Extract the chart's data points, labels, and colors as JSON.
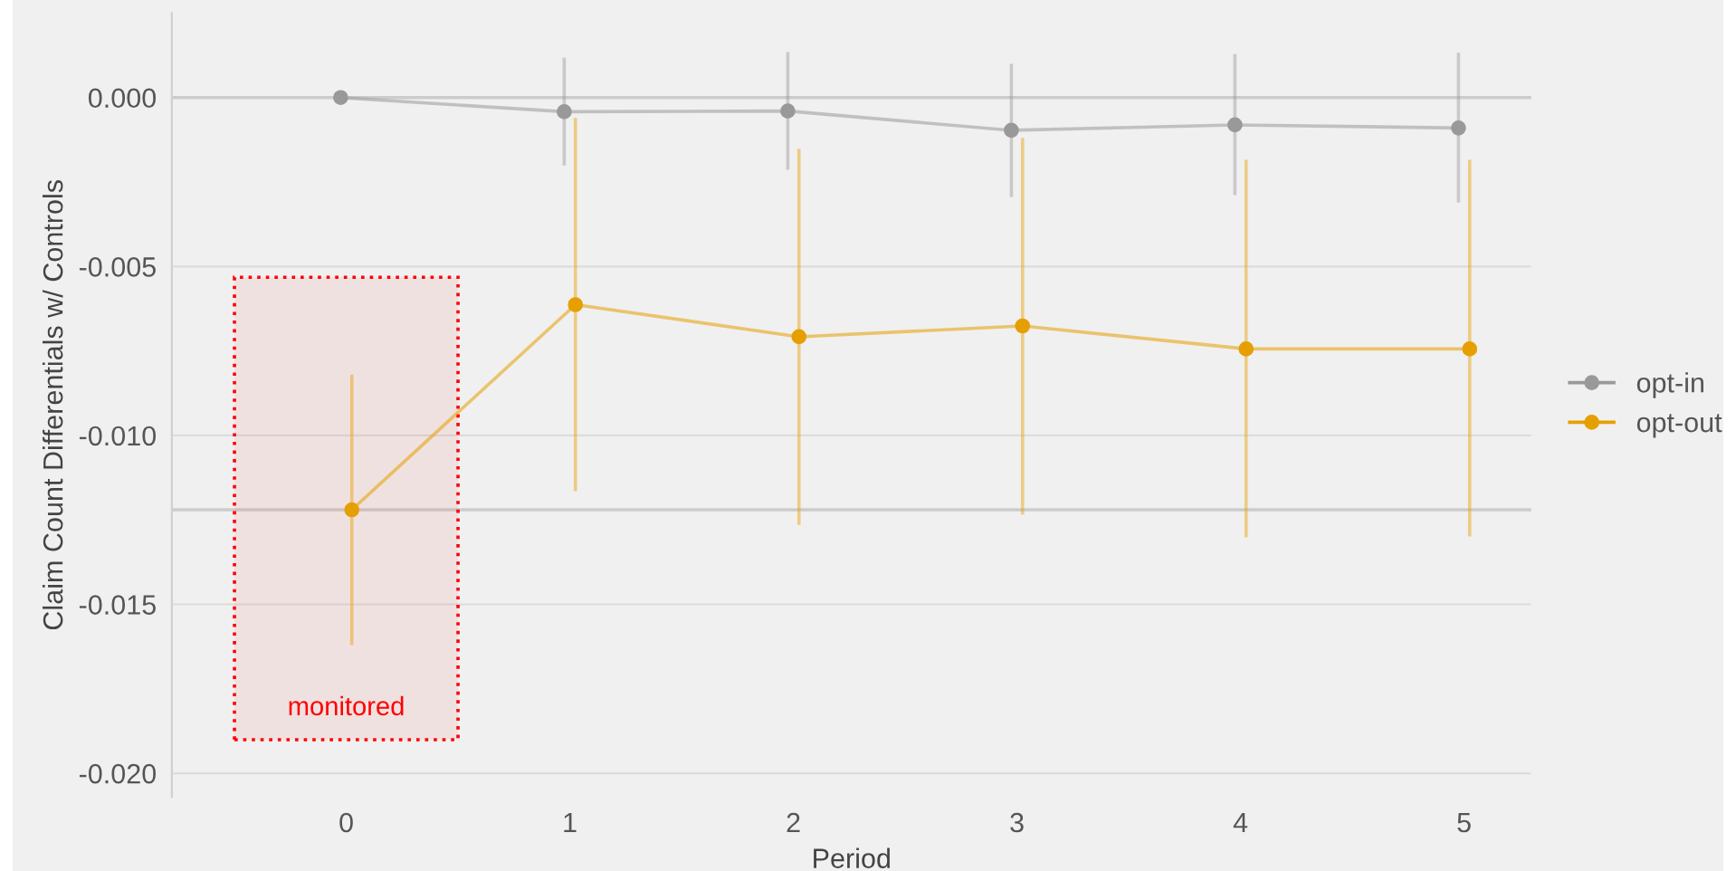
{
  "chart_data": {
    "type": "line",
    "xlabel": "Period",
    "ylabel": "Claim Count Differentials w/ Controls",
    "xlim": [
      -0.78,
      5.3
    ],
    "xticks": [
      0,
      1,
      2,
      3,
      4,
      5
    ],
    "ylim": [
      -0.0207,
      0.0025
    ],
    "yticks": [
      {
        "value": 0,
        "label": "0.000"
      },
      {
        "value": -0.005,
        "label": "-0.005"
      },
      {
        "value": -0.01,
        "label": "-0.010"
      },
      {
        "value": -0.015,
        "label": "-0.015"
      },
      {
        "value": -0.02,
        "label": "-0.020"
      }
    ],
    "series": [
      {
        "name": "opt-in",
        "color": "#999999",
        "x": [
          -0.025,
          0.975,
          1.975,
          2.975,
          3.975,
          4.975
        ],
        "values": [
          0,
          -0.00042,
          -0.0004,
          -0.00097,
          -0.00081,
          -0.0009
        ],
        "errors": [
          null,
          [
            -0.00196,
            0.00113
          ],
          [
            -0.00209,
            0.0013
          ],
          [
            -0.0029,
            0.00095
          ],
          [
            -0.00284,
            0.00124
          ],
          [
            -0.00306,
            0.00128
          ]
        ]
      },
      {
        "name": "opt-out",
        "color": "#e69f00",
        "x": [
          0.025,
          1.025,
          2.025,
          3.025,
          4.025,
          5.025
        ],
        "values": [
          -0.0122,
          -0.00613,
          -0.00708,
          -0.00676,
          -0.00744,
          -0.00744
        ],
        "errors": [
          [
            -0.01616,
            -0.00825
          ],
          [
            -0.0116,
            -0.00065
          ],
          [
            -0.0126,
            -0.00156
          ],
          [
            -0.01229,
            -0.00124
          ],
          [
            -0.01297,
            -0.00189
          ],
          [
            -0.01294,
            -0.00189
          ]
        ]
      }
    ],
    "ref_lines": [
      {
        "axis": "y",
        "value": 0,
        "color": "#cccccc"
      },
      {
        "axis": "y",
        "value": -0.0122,
        "color": "#cccccc"
      }
    ],
    "bands": [
      {
        "axis": "x",
        "from": -0.5,
        "to": 0.5,
        "label": "monitored",
        "color": "#ff0000"
      }
    ],
    "grid": "y",
    "legend": "right",
    "marker": "circle",
    "line_style": "solid"
  }
}
